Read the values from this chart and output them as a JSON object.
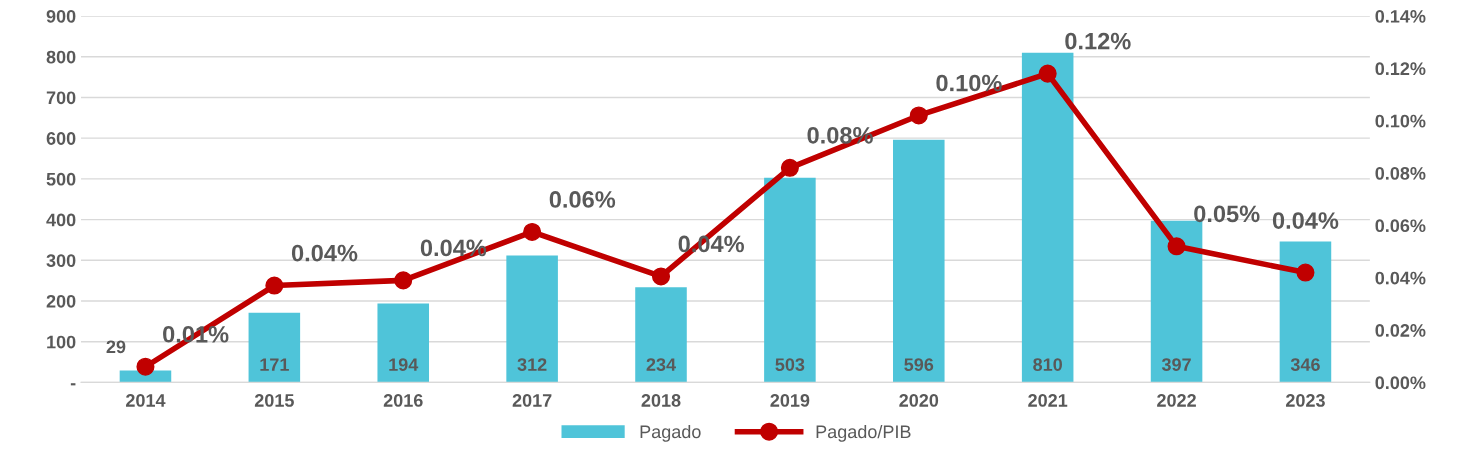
{
  "chart_data": {
    "type": "bar",
    "categories": [
      "2014",
      "2015",
      "2016",
      "2017",
      "2018",
      "2019",
      "2020",
      "2021",
      "2022",
      "2023"
    ],
    "series": [
      {
        "name": "Pagado",
        "color": "#4fc4d9",
        "values": [
          29,
          171,
          194,
          312,
          234,
          503,
          596,
          810,
          397,
          346
        ],
        "data_labels": true
      },
      {
        "name": "Pagado/PIB",
        "type": "line",
        "axis": "y2",
        "color": "#c00000",
        "marker": "circle",
        "values": [
          0.006,
          0.037,
          0.039,
          0.0575,
          0.0405,
          0.082,
          0.102,
          0.118,
          0.052,
          0.042
        ],
        "value_labels": [
          "0.01%",
          "0.04%",
          "0.04%",
          "0.06%",
          "0.04%",
          "0.08%",
          "0.10%",
          "0.12%",
          "0.05%",
          "0.04%"
        ]
      }
    ],
    "ylim": [
      0,
      900
    ],
    "yticks": [
      {
        "value": 0,
        "label": "-"
      },
      100,
      200,
      300,
      400,
      500,
      600,
      700,
      800,
      900
    ],
    "y2lim": [
      0,
      0.14
    ],
    "y2ticks": [
      {
        "value": 0,
        "label": "0.00%"
      },
      {
        "value": 0.02,
        "label": "0.02%"
      },
      {
        "value": 0.04,
        "label": "0.04%"
      },
      {
        "value": 0.06,
        "label": "0.06%"
      },
      {
        "value": 0.08,
        "label": "0.08%"
      },
      {
        "value": 0.1,
        "label": "0.10%"
      },
      {
        "value": 0.12,
        "label": "0.12%"
      },
      {
        "value": 0.14,
        "label": "0.14%"
      }
    ],
    "grid": "y",
    "legend": "bottom"
  }
}
